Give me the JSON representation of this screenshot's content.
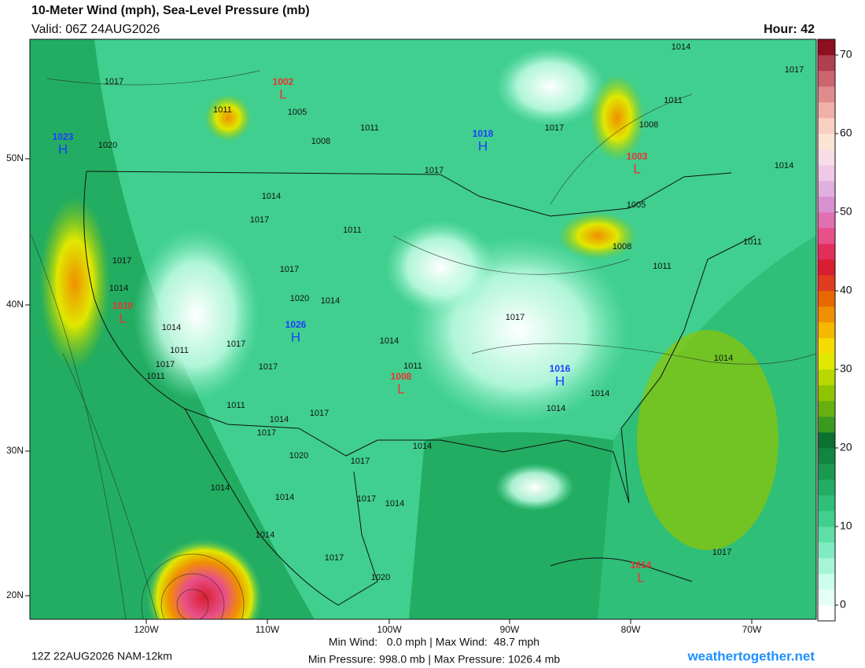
{
  "header": {
    "title": "10-Meter Wind (mph), Sea-Level Pressure (mb)",
    "valid": "Valid: 06Z 24AUG2026",
    "hour": "Hour: 42"
  },
  "map": {
    "lat_labels": [
      "50N",
      "40N",
      "30N",
      "20N"
    ],
    "lon_labels": [
      "120W",
      "110W",
      "100W",
      "90W",
      "80W",
      "70W"
    ],
    "centers": [
      {
        "letter": "H",
        "value": 1023
      },
      {
        "letter": "L",
        "value": 1002
      },
      {
        "letter": "H",
        "value": 1018
      },
      {
        "letter": "L",
        "value": 1003
      },
      {
        "letter": "L",
        "value": 1010
      },
      {
        "letter": "H",
        "value": 1026
      },
      {
        "letter": "L",
        "value": 1008
      },
      {
        "letter": "H",
        "value": 1016
      },
      {
        "letter": "L",
        "value": 1014
      }
    ],
    "isobar_labels": [
      1017,
      1011,
      1005,
      1008,
      1011,
      1020,
      1017,
      1017,
      1014,
      1017,
      1011,
      1017,
      1017,
      1014,
      1020,
      1014,
      1014,
      1011,
      1017,
      1017,
      1011,
      1017,
      1014,
      1011,
      1017,
      1011,
      1014,
      1017,
      1017,
      1014,
      1014,
      1014,
      1014,
      1020,
      1017,
      1014,
      1014,
      1017,
      1014,
      1014,
      1017,
      1020,
      1017,
      1014,
      1017,
      1011,
      1008,
      1014,
      1005,
      1008,
      1011,
      1011
    ]
  },
  "colorbar": {
    "lim": [
      -2,
      72
    ],
    "ticks": [
      0,
      10,
      20,
      30,
      40,
      50,
      60,
      70
    ],
    "colors": [
      "#ffffff",
      "#e6fff5",
      "#ccffeb",
      "#a6f5d6",
      "#80ebc0",
      "#5fdea8",
      "#40cf8f",
      "#2fbf78",
      "#22ad62",
      "#1a994f",
      "#128540",
      "#0b7030",
      "#3a9a20",
      "#66b010",
      "#8fc400",
      "#b8d800",
      "#e0e800",
      "#f5dc00",
      "#f5b800",
      "#f09000",
      "#e86800",
      "#e03c20",
      "#d81e30",
      "#e0305a",
      "#e8508a",
      "#e070b0",
      "#d890d0",
      "#e0b0e0",
      "#f0c8e8",
      "#f8dce8",
      "#fce4d4",
      "#f8d0c0",
      "#f0b0a8",
      "#e08c8c",
      "#cc6670",
      "#b04050",
      "#8c1020"
    ]
  },
  "footer": {
    "run": "12Z 22AUG2026 NAM-12km",
    "wind": "Min Wind:   0.0 mph | Max Wind:  48.7 mph",
    "pressure": "Min Pressure: 998.0 mb | Max Pressure: 1026.4 mb",
    "site": "weathertogether.net"
  }
}
